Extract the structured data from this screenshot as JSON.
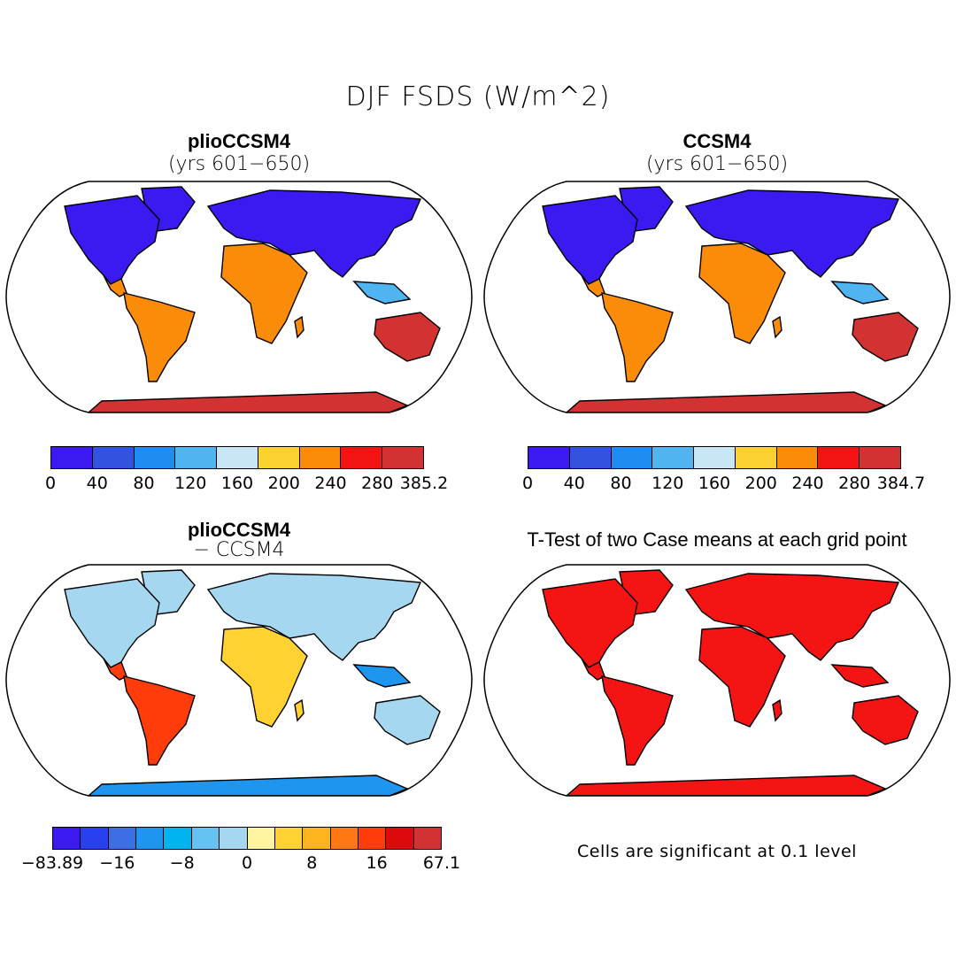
{
  "title": "DJF FSDS (W/m^2)",
  "panels": {
    "top_left": {
      "title": "plioCCSM4",
      "subtitle": "(yrs 601−650)"
    },
    "top_right": {
      "title": "CCSM4",
      "subtitle": "(yrs 601−650)"
    },
    "bottom_left": {
      "title": "plioCCSM4",
      "subtitle": "− CCSM4"
    },
    "bottom_right": {
      "title": "T-Test of two Case means at each grid point",
      "note": "Cells are significant at 0.1 level"
    }
  },
  "colorbars": {
    "top_left": {
      "colors": [
        "#3a1af0",
        "#3252e0",
        "#1e8cf0",
        "#50b4f0",
        "#c8e6f5",
        "#fbd232",
        "#fa8c0a",
        "#f51414",
        "#d23232"
      ],
      "ticks": [
        "0",
        "40",
        "80",
        "120",
        "160",
        "200",
        "240",
        "280",
        "385.2"
      ]
    },
    "top_right": {
      "colors": [
        "#3a1af0",
        "#3252e0",
        "#1e8cf0",
        "#50b4f0",
        "#c8e6f5",
        "#fbd232",
        "#fa8c0a",
        "#f51414",
        "#d23232"
      ],
      "ticks": [
        "0",
        "40",
        "80",
        "120",
        "160",
        "200",
        "240",
        "280",
        "384.7"
      ]
    },
    "bottom_left": {
      "colors": [
        "#3a1af0",
        "#2840f0",
        "#3c6ee6",
        "#1e96f0",
        "#00b4f0",
        "#64c3f0",
        "#a5d7f0",
        "#fff5a0",
        "#ffd232",
        "#ffb41e",
        "#ff7814",
        "#ff3c0a",
        "#dc0a0a",
        "#d23232"
      ],
      "ticks": [
        "−83.89",
        "−16",
        "−8",
        "0",
        "8",
        "16",
        "67.1"
      ]
    }
  },
  "fills": {
    "ocean": "#ffffff",
    "cold": "#3a1af0",
    "mid": "#50b4f0",
    "warm": "#fa8c0a",
    "hot": "#d23232",
    "diff_neutral": "#a5d7f0",
    "diff_pos": "#ffd232",
    "diff_strong": "#ff3c0a",
    "diff_neg": "#1e96f0",
    "significant": "#f51414"
  }
}
